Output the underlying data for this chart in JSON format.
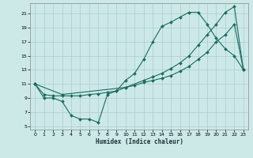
{
  "xlabel": "Humidex (Indice chaleur)",
  "bg_color": "#cce9e8",
  "grid_color": "#aacccc",
  "line_color": "#1a6b60",
  "xlim": [
    -0.5,
    23.5
  ],
  "ylim": [
    4.5,
    22.5
  ],
  "xticks": [
    0,
    1,
    2,
    3,
    4,
    5,
    6,
    7,
    8,
    9,
    10,
    11,
    12,
    13,
    14,
    15,
    16,
    17,
    18,
    19,
    20,
    21,
    22,
    23
  ],
  "yticks": [
    5,
    7,
    9,
    11,
    13,
    15,
    17,
    19,
    21
  ],
  "curve1_x": [
    0,
    1,
    2,
    3,
    4,
    5,
    6,
    7,
    8,
    9,
    10,
    11,
    12,
    13,
    14,
    15,
    16,
    17,
    18,
    19,
    20,
    21,
    22,
    23
  ],
  "curve1_y": [
    11,
    9,
    9,
    8.5,
    6.5,
    6.0,
    6.0,
    5.5,
    9.5,
    10,
    11.5,
    12.5,
    14.5,
    17,
    19.2,
    19.8,
    20.5,
    21.2,
    21.2,
    19.5,
    17.5,
    16,
    15,
    13
  ],
  "curve2_x": [
    0,
    3,
    10,
    12,
    13,
    14,
    15,
    16,
    17,
    18,
    19,
    20,
    21,
    22,
    23
  ],
  "curve2_y": [
    11,
    9.5,
    10.5,
    11.5,
    12.0,
    12.5,
    13.2,
    14.0,
    15.0,
    16.5,
    18.0,
    19.5,
    21.2,
    22.0,
    13
  ],
  "curve3_x": [
    0,
    1,
    2,
    3,
    4,
    5,
    6,
    7,
    8,
    9,
    10,
    11,
    12,
    13,
    14,
    15,
    16,
    17,
    18,
    19,
    20,
    21,
    22,
    23
  ],
  "curve3_y": [
    11,
    9.5,
    9.3,
    9.3,
    9.3,
    9.3,
    9.5,
    9.6,
    9.8,
    10.0,
    10.5,
    10.8,
    11.2,
    11.5,
    11.8,
    12.2,
    12.8,
    13.5,
    14.5,
    15.5,
    17.0,
    18.0,
    19.5,
    13
  ]
}
